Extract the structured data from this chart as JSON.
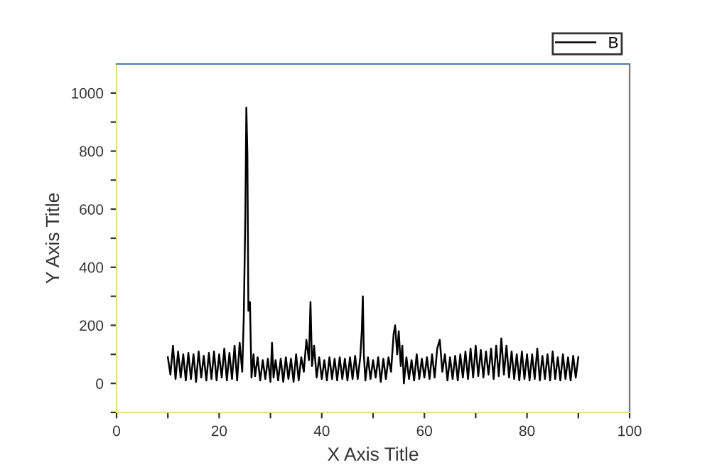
{
  "chart_data": {
    "type": "line",
    "xlabel": "X Axis Title",
    "ylabel": "Y Axis Title",
    "xlim": [
      0,
      100
    ],
    "ylim": [
      -100,
      1100
    ],
    "xticks": [
      0,
      {
        "value": 10,
        "label": null
      },
      20,
      {
        "value": 30,
        "label": null
      },
      40,
      {
        "value": 50,
        "label": null
      },
      60,
      {
        "value": 70,
        "label": null
      },
      80,
      {
        "value": 90,
        "label": null
      },
      100
    ],
    "yticks": [
      {
        "value": -100,
        "label": null
      },
      0,
      {
        "value": 100,
        "label": null
      },
      200,
      {
        "value": 300,
        "label": null
      },
      400,
      {
        "value": 500,
        "label": null
      },
      600,
      {
        "value": 700,
        "label": null
      },
      800,
      {
        "value": 900,
        "label": null
      },
      1000
    ],
    "grid": false,
    "legend": "top right",
    "marker": "none",
    "line_style": "solid",
    "series": [
      {
        "name": "B",
        "color": "#000000",
        "x": [
          10,
          10.5,
          11,
          11.5,
          12,
          12.5,
          13,
          13.5,
          14,
          14.5,
          15,
          15.5,
          16,
          16.5,
          17,
          17.5,
          18,
          18.5,
          19,
          19.5,
          20,
          20.5,
          21,
          21.5,
          22,
          22.5,
          23,
          23.5,
          24,
          24.5,
          24.8,
          25.1,
          25.3,
          25.5,
          25.7,
          26,
          26.3,
          26.7,
          27,
          27.5,
          28,
          28.5,
          29,
          29.5,
          30,
          30.3,
          30.6,
          31,
          31.5,
          32,
          32.5,
          33,
          33.5,
          34,
          34.5,
          35,
          35.5,
          36,
          36.5,
          37,
          37.5,
          37.8,
          38.1,
          38.5,
          39,
          39.5,
          40,
          40.5,
          41,
          41.5,
          42,
          42.5,
          43,
          43.5,
          44,
          44.5,
          45,
          45.5,
          46,
          46.5,
          47,
          47.5,
          47.8,
          48,
          48.2,
          48.5,
          49,
          49.5,
          50,
          50.5,
          51,
          51.5,
          52,
          52.5,
          53,
          53.5,
          54,
          54.3,
          54.7,
          55,
          55.4,
          55.7,
          56,
          56.5,
          57,
          57.5,
          58,
          58.5,
          59,
          59.5,
          60,
          60.5,
          61,
          61.5,
          62,
          62.5,
          63,
          63.5,
          64,
          64.5,
          65,
          65.5,
          66,
          66.5,
          67,
          67.5,
          68,
          68.5,
          69,
          69.5,
          70,
          70.5,
          71,
          71.5,
          72,
          72.5,
          73,
          73.5,
          74,
          74.5,
          75,
          75.5,
          76,
          76.5,
          77,
          77.5,
          78,
          78.5,
          79,
          79.5,
          80,
          80.5,
          81,
          81.5,
          82,
          82.5,
          83,
          83.5,
          84,
          84.5,
          85,
          85.5,
          86,
          86.5,
          87,
          87.5,
          88,
          88.5,
          89,
          89.5,
          90
        ],
        "values": [
          90,
          30,
          130,
          15,
          110,
          20,
          100,
          10,
          105,
          15,
          100,
          5,
          110,
          20,
          95,
          10,
          105,
          15,
          110,
          10,
          100,
          20,
          120,
          10,
          105,
          15,
          130,
          10,
          140,
          40,
          230,
          580,
          950,
          790,
          250,
          280,
          20,
          100,
          25,
          90,
          10,
          80,
          15,
          85,
          5,
          140,
          20,
          80,
          10,
          85,
          5,
          90,
          15,
          85,
          5,
          100,
          10,
          90,
          40,
          150,
          80,
          280,
          60,
          130,
          20,
          90,
          15,
          80,
          10,
          90,
          15,
          85,
          10,
          90,
          15,
          85,
          10,
          90,
          15,
          95,
          15,
          90,
          180,
          300,
          100,
          10,
          90,
          15,
          80,
          20,
          90,
          5,
          85,
          15,
          90,
          40,
          170,
          200,
          100,
          180,
          60,
          130,
          0,
          90,
          15,
          80,
          10,
          100,
          15,
          85,
          20,
          90,
          15,
          100,
          20,
          120,
          150,
          40,
          100,
          10,
          90,
          15,
          95,
          10,
          100,
          20,
          110,
          15,
          120,
          20,
          130,
          25,
          115,
          20,
          110,
          30,
          120,
          15,
          130,
          25,
          155,
          30,
          130,
          20,
          110,
          15,
          100,
          10,
          110,
          15,
          100,
          10,
          100,
          15,
          120,
          10,
          95,
          15,
          100,
          10,
          110,
          15,
          90,
          10,
          100,
          15,
          90,
          10,
          95,
          20,
          90
        ]
      }
    ]
  }
}
